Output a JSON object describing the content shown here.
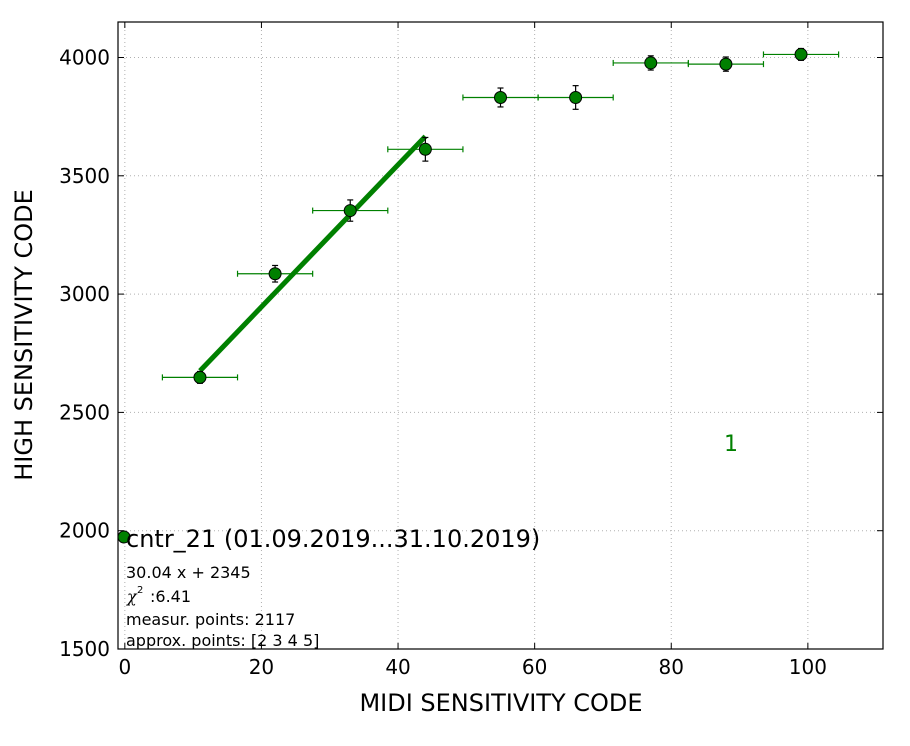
{
  "chart_data": {
    "type": "scatter",
    "xlabel": "MIDI SENSITIVITY CODE",
    "ylabel": "HIGH SENSITIVITY CODE",
    "xlim": [
      -1,
      111
    ],
    "ylim": [
      1500,
      4150
    ],
    "xticks": [
      0,
      20,
      40,
      60,
      80,
      100
    ],
    "yticks": [
      1500,
      2000,
      2500,
      3000,
      3500,
      4000
    ],
    "grid": true,
    "color": "#008000",
    "marker_face": "#008000",
    "series": [
      {
        "name": "cntr_21 (01.09.2019...31.10.2019)",
        "points": [
          {
            "x": 11,
            "y": 2648,
            "xerr": 5.5,
            "yerr": 25
          },
          {
            "x": 22,
            "y": 3086,
            "xerr": 5.5,
            "yerr": 35
          },
          {
            "x": 33,
            "y": 3353,
            "xerr": 5.5,
            "yerr": 45
          },
          {
            "x": 44,
            "y": 3612,
            "xerr": 5.5,
            "yerr": 50
          },
          {
            "x": 55,
            "y": 3831,
            "xerr": 5.5,
            "yerr": 40
          },
          {
            "x": 66,
            "y": 3831,
            "xerr": 5.5,
            "yerr": 50
          },
          {
            "x": 77,
            "y": 3977,
            "xerr": 5.5,
            "yerr": 30
          },
          {
            "x": 88,
            "y": 3972,
            "xerr": 5.5,
            "yerr": 30
          },
          {
            "x": 99,
            "y": 4013,
            "xerr": 5.5,
            "yerr": 25
          }
        ]
      }
    ],
    "fit": {
      "slope": 30.04,
      "intercept": 2345,
      "x_range": [
        11,
        44
      ]
    },
    "annotations": {
      "panel_number": "1",
      "legend_title": "cntr_21 (01.09.2019...31.10.2019)",
      "equation": "30.04 x + 2345",
      "chi_symbol": "χ",
      "chi_exponent": "2",
      "chi_value": ":6.41",
      "measur_points": "measur. points: 2117",
      "approx_points": "approx. points: [2 3 4 5]"
    }
  }
}
